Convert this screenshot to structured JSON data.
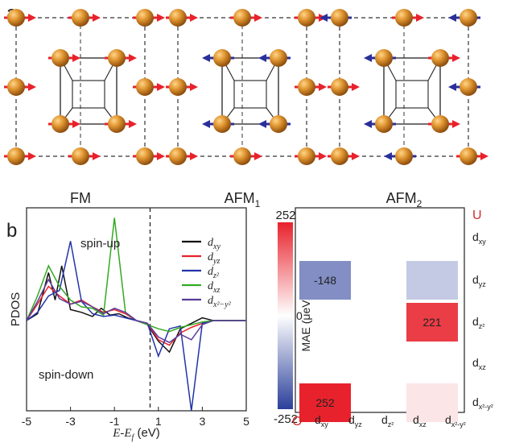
{
  "panel_a": {
    "label": "a",
    "structures": [
      {
        "label": "FM",
        "sub": ""
      },
      {
        "label": "AFM",
        "sub": "1"
      },
      {
        "label": "AFM",
        "sub": "2"
      }
    ],
    "colors": {
      "atom": "#d4861c",
      "spin_up": "#e8222c",
      "spin_down": "#2a2f9a"
    }
  },
  "panel_b": {
    "label": "b",
    "pdos": {
      "ylabel": "PDOS",
      "xlabel_main": "E-E",
      "xlabel_sub": "f",
      "xlabel_unit": " (eV)",
      "xticks": [
        "-5",
        "-3",
        "-1",
        "1",
        "3",
        "5"
      ],
      "annot_up": "spin-up",
      "annot_down": "spin-down",
      "legend": [
        {
          "main": "d",
          "sub": "xy",
          "color": "#111111"
        },
        {
          "main": "d",
          "sub": "yz",
          "color": "#e8222c"
        },
        {
          "main": "d",
          "sub": "z²",
          "color": "#2233aa"
        },
        {
          "main": "d",
          "sub": "xz",
          "color": "#33aa22"
        },
        {
          "main": "d",
          "sub": "x²−y²",
          "color": "#5a3c9a"
        }
      ]
    },
    "mae": {
      "colorbar_max": "252",
      "colorbar_zero": "0",
      "colorbar_min": "-252",
      "colorbar_label": "MAE (μeV/Fe)",
      "row_header": "U",
      "col_header": "O",
      "rows": [
        "xy",
        "yz",
        "z²",
        "xz",
        "x²-y²"
      ],
      "cols": [
        "xy",
        "yz",
        "z²",
        "xz",
        "x²-y²"
      ],
      "cells": [
        {
          "col": 0,
          "row": 1,
          "value": -148,
          "label": "-148"
        },
        {
          "col": 3,
          "row": 1,
          "value": -70,
          "label": ""
        },
        {
          "col": 3,
          "row": 2,
          "value": 221,
          "label": "221"
        },
        {
          "col": 0,
          "row": 4,
          "value": 252,
          "label": "252"
        },
        {
          "col": 3,
          "row": 4,
          "value": 30,
          "label": ""
        }
      ]
    }
  },
  "chart_data": [
    {
      "type": "line",
      "xlabel": "E-Ef (eV)",
      "ylabel": "PDOS",
      "xlim": [
        -5,
        5
      ],
      "x_ticks": [
        -5,
        -3,
        -1,
        1,
        3,
        5
      ],
      "series": [
        {
          "name": "dxy",
          "x": [
            -5,
            -4.5,
            -4,
            -3.7,
            -3.4,
            -3,
            -2.5,
            -2,
            -1.6,
            -1.2,
            -0.8,
            -0.4,
            0,
            0.5,
            1,
            1.5,
            2,
            2.5,
            3,
            3.5,
            4,
            4.5,
            5
          ],
          "y": [
            0,
            0.5,
            3.5,
            1.5,
            4,
            0.8,
            0.6,
            0.3,
            0.9,
            0.4,
            0.5,
            0.2,
            0,
            -0.3,
            -1.5,
            -2.3,
            -0.6,
            -0.2,
            0.2,
            0,
            0,
            0,
            0
          ]
        },
        {
          "name": "dyz",
          "x": [
            -5,
            -4.5,
            -4,
            -3.5,
            -3,
            -2.5,
            -2,
            -1.5,
            -1,
            -0.5,
            0,
            0.5,
            1,
            1.5,
            2,
            2.5,
            3,
            3.5,
            4,
            4.5,
            5
          ],
          "y": [
            0,
            1.2,
            2.5,
            1.8,
            1.2,
            1.5,
            1,
            0.6,
            0.8,
            0.5,
            0,
            -0.2,
            -1.4,
            -1.8,
            -0.9,
            -0.5,
            -0.2,
            0,
            0,
            0,
            0
          ]
        },
        {
          "name": "dz2",
          "x": [
            -5,
            -4.5,
            -4,
            -3.5,
            -3,
            -2.5,
            -2,
            -1.5,
            -1,
            -0.5,
            0,
            0.5,
            1,
            1.5,
            2,
            2.5,
            3,
            3.5,
            4,
            4.5,
            5
          ],
          "y": [
            0,
            0.6,
            1.8,
            2.2,
            5.8,
            1.4,
            0.5,
            0.3,
            0.4,
            0.2,
            0,
            -0.2,
            -2.6,
            -0.6,
            -0.4,
            -8,
            -0.2,
            0,
            0,
            0,
            0
          ]
        },
        {
          "name": "dxz",
          "x": [
            -5,
            -4.5,
            -4,
            -3.5,
            -3,
            -2.5,
            -2,
            -1.5,
            -1,
            -0.5,
            0,
            0.5,
            1,
            1.5,
            2,
            2.5,
            3,
            3.5,
            4,
            4.5,
            5
          ],
          "y": [
            0,
            1.8,
            4,
            2.5,
            1.5,
            1,
            0.9,
            0.4,
            7.5,
            0.6,
            0,
            -0.3,
            -0.6,
            -0.8,
            -0.5,
            -0.3,
            -0.1,
            0,
            0,
            0,
            0
          ]
        },
        {
          "name": "dx2-y2",
          "x": [
            -5,
            -4.5,
            -4,
            -3.5,
            -3,
            -2.5,
            -2,
            -1.5,
            -1,
            -0.5,
            0,
            0.5,
            1,
            1.5,
            2,
            2.5,
            3,
            3.5,
            4,
            4.5,
            5
          ],
          "y": [
            0,
            1.4,
            3,
            1.6,
            1.2,
            1.4,
            1,
            0.5,
            0.9,
            0.6,
            0,
            -0.2,
            -1.2,
            -1.6,
            -1,
            -1.4,
            -0.3,
            0,
            0,
            0,
            0
          ]
        }
      ]
    },
    {
      "type": "heatmap",
      "ylabel": "MAE (μeV/Fe)",
      "zlim": [
        -252,
        252
      ],
      "x_categories": [
        "dxy",
        "dyz",
        "dz2",
        "dxz",
        "dx2-y2"
      ],
      "y_categories": [
        "dxy",
        "dyz",
        "dz2",
        "dxz",
        "dx2-y2"
      ],
      "values": [
        [
          0,
          0,
          0,
          0,
          0
        ],
        [
          -148,
          0,
          0,
          -70,
          0
        ],
        [
          0,
          0,
          0,
          221,
          0
        ],
        [
          0,
          0,
          0,
          0,
          0
        ],
        [
          252,
          0,
          0,
          30,
          0
        ]
      ]
    }
  ]
}
